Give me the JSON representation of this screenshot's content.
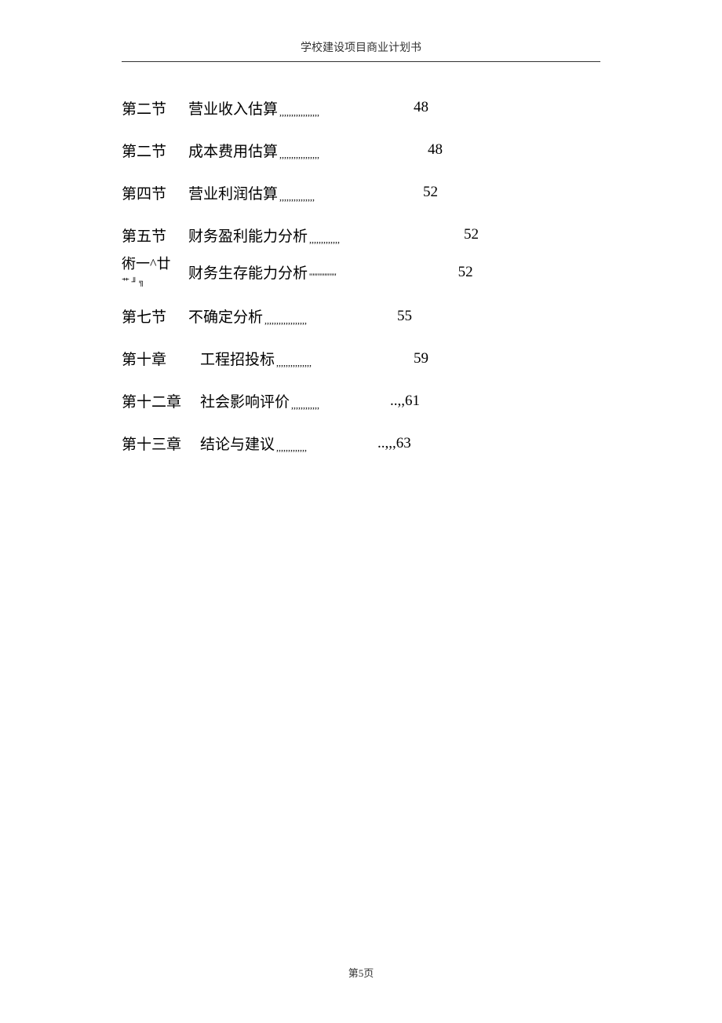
{
  "header": {
    "title": "学校建设项目商业计划书"
  },
  "toc": {
    "entries": [
      {
        "label": "第二节",
        "title": "营业收入估算",
        "dots": ",,,,,,,,,,,,,,,,,",
        "page": "48",
        "spacer_class": "spacer-1",
        "label_class": "toc-label"
      },
      {
        "label": "第二节",
        "title": "成本费用估算",
        "dots": ",,,,,,,,,,,,,,,,,",
        "page": "48",
        "spacer_class": "spacer-2",
        "label_class": "toc-label"
      },
      {
        "label": "第四节",
        "title": "营业利润估算",
        "dots": ",,,,,,,,,,,,,,,",
        "page": "52",
        "spacer_class": "spacer-3",
        "label_class": "toc-label"
      },
      {
        "label": "第五节",
        "title": "财务盈利能力分析",
        "dots": ",,,,,,,,,,,,,",
        "page": "52",
        "spacer_class": "spacer-4",
        "label_class": "toc-label"
      },
      {
        "label": "術一^廿",
        "label_extra": "艹 ╜ ╗",
        "title": "财务生存能力分析",
        "dots": "''''''''''''''''",
        "page": "52",
        "spacer_class": "spacer-5",
        "label_class": "toc-label-garbled"
      },
      {
        "label": "第七节",
        "title": "不确定分析",
        "dots": ",,,,,,,,,,,,,,,,,,",
        "page": "55",
        "spacer_class": "spacer-6",
        "label_class": "toc-label"
      },
      {
        "label": "第十章",
        "title": " 工程招投标",
        "dots": ",,,,,,,,,,,,,,,",
        "page": "59",
        "spacer_class": "spacer-7",
        "label_class": "toc-label-wide"
      },
      {
        "label": "第十二章",
        "title": "社会影响评价",
        "dots": ",,,,,,,,,,,,",
        "page": "..,,61",
        "spacer_class": "spacer-8",
        "label_class": "toc-label-wide"
      },
      {
        "label": "第十三章",
        "title": "结论与建议",
        "dots": ",,,,,,,,,,,,,",
        "page": "..,,,63",
        "spacer_class": "spacer-9",
        "label_class": "toc-label-wide"
      }
    ]
  },
  "footer": {
    "page_label": "第5页"
  }
}
